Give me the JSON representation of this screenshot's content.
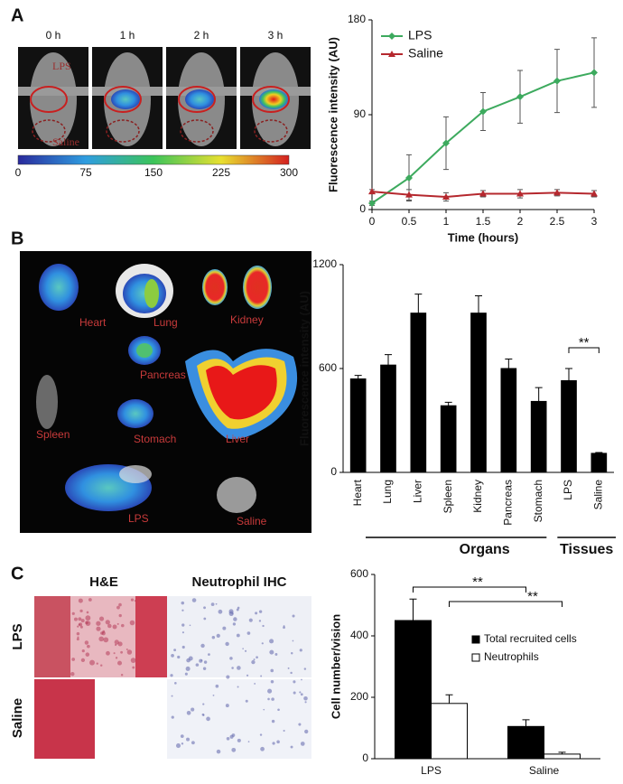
{
  "panel_labels": [
    "A",
    "B",
    "C"
  ],
  "imaging": {
    "time_labels": [
      "0 h",
      "1 h",
      "2 h",
      "3 h"
    ],
    "lps_label": "LPS",
    "saline_label": "Saline",
    "colorbar_ticks": [
      0,
      75,
      150,
      225,
      300
    ]
  },
  "organ_image_labels": [
    "Heart",
    "Lung",
    "Kidney",
    "Pancreas",
    "Spleen",
    "Stomach",
    "Liver",
    "LPS",
    "Saline"
  ],
  "histology": {
    "columns": [
      "H&E",
      "Neutrophil IHC"
    ],
    "rows": [
      "LPS",
      "Saline"
    ]
  },
  "chart_data": [
    {
      "type": "line",
      "x_label": "Time (hours)",
      "y_label": "Fluorescence  intensity (AU)",
      "x": [
        0,
        0.5,
        1,
        1.5,
        2,
        2.5,
        3
      ],
      "xlim": [
        0,
        3
      ],
      "xticks": [
        0,
        0.5,
        1,
        1.5,
        2,
        2.5,
        3
      ],
      "ylim": [
        0,
        180
      ],
      "yticks": [
        0,
        90,
        180
      ],
      "legend": "upper left",
      "series": [
        {
          "name": "LPS",
          "color": "#3daa5e",
          "marker": "diamond",
          "values": [
            6,
            30,
            63,
            93,
            107,
            122,
            130
          ],
          "errors": [
            2,
            22,
            25,
            18,
            25,
            30,
            33
          ]
        },
        {
          "name": "Saline",
          "color": "#b5282e",
          "marker": "triangle",
          "values": [
            17,
            14,
            12,
            15,
            15,
            16,
            15
          ],
          "errors": [
            2,
            5,
            4,
            3,
            4,
            3,
            3
          ]
        }
      ]
    },
    {
      "type": "bar",
      "y_label": "Fluorescence intensity (AU)",
      "categories": [
        "Heart",
        "Lung",
        "Liver",
        "Spleen",
        "Kidney",
        "Pancreas",
        "Stomach",
        "LPS",
        "Saline"
      ],
      "values": [
        540,
        620,
        920,
        385,
        920,
        600,
        410,
        530,
        110
      ],
      "errors": [
        20,
        60,
        110,
        20,
        100,
        55,
        80,
        70,
        5
      ],
      "color": "#000000",
      "ylim": [
        0,
        1200
      ],
      "yticks": [
        0,
        600,
        1200
      ],
      "group_labels": [
        "Organs",
        "Tissues"
      ],
      "annotations": [
        "**"
      ]
    },
    {
      "type": "bar",
      "y_label": "Cell number/vision",
      "categories": [
        "LPS",
        "Saline"
      ],
      "ylim": [
        0,
        600
      ],
      "yticks": [
        0,
        200,
        400,
        600
      ],
      "legend": "upper right",
      "series": [
        {
          "name": "Total recruited cells",
          "color": "#000000",
          "values": [
            450,
            105
          ],
          "errors": [
            70,
            22
          ]
        },
        {
          "name": "Neutrophils",
          "color": "#ffffff",
          "values": [
            180,
            15
          ],
          "errors": [
            28,
            6
          ]
        }
      ],
      "annotations": [
        "**",
        "**"
      ]
    }
  ]
}
